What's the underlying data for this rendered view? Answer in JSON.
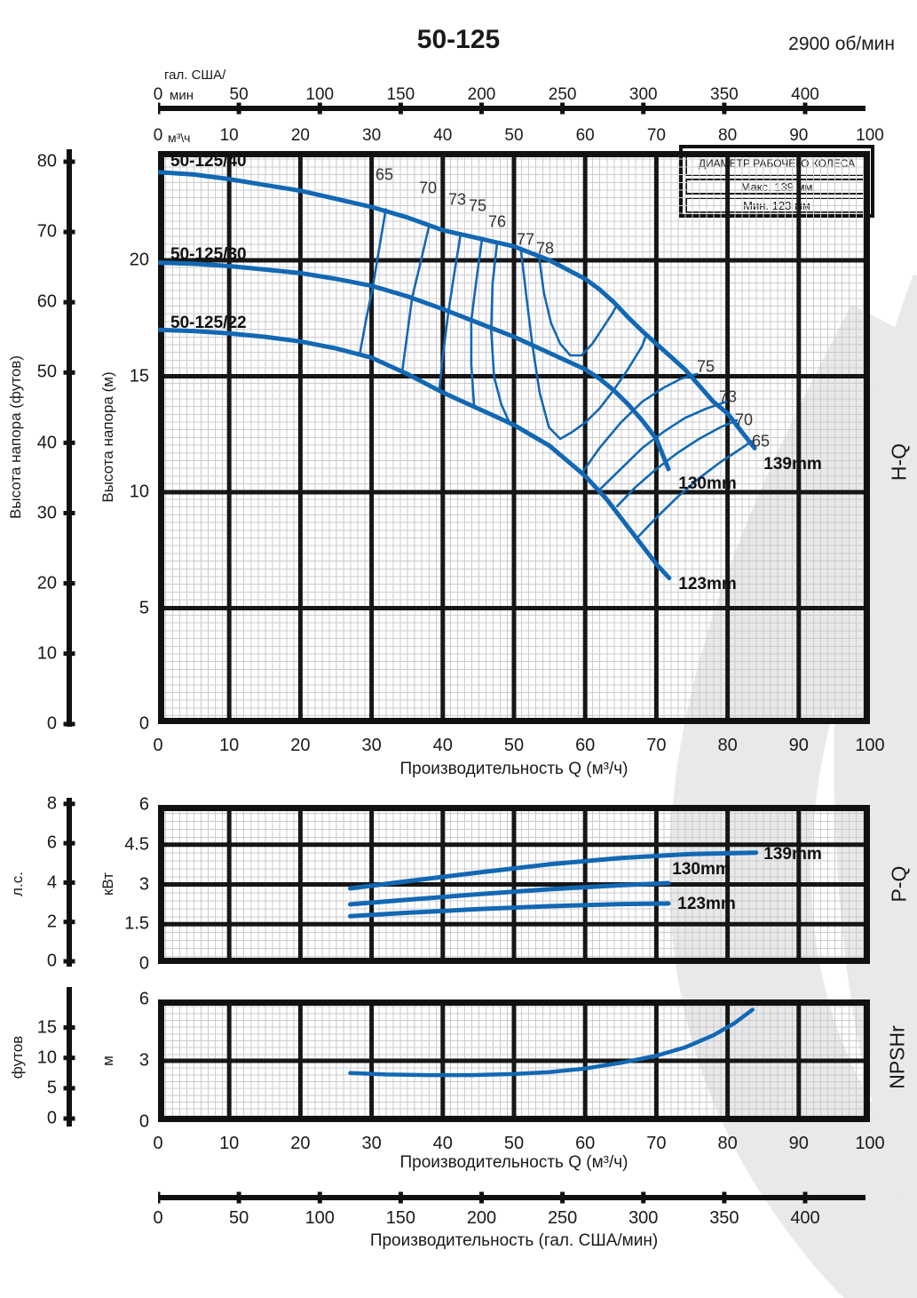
{
  "header": {
    "title": "50-125",
    "rpm": "2900 об/мин"
  },
  "legend": {
    "title": "ДИАМЕТР РАБОЧЕГО КОЛЕСА",
    "max_label": "Макс. 139 мм",
    "min_label": "Мин. 123 мм"
  },
  "axis_units": {
    "gal_line1": "гал. США/",
    "gal_line2": "мин",
    "m3h": "м³\\ч",
    "kw": "кВт",
    "hp": "л.с.",
    "m": "м",
    "feet": "футов",
    "head_ft": "Высота напора (футов)",
    "head_m": "Высота напора (м)"
  },
  "axis_titles": {
    "q_m3h": "Производительность Q (м³/ч)",
    "q_gal": "Производительность (гал. США/мин)"
  },
  "section_labels": {
    "hq": "H-Q",
    "pq": "P-Q",
    "npsh": "NPSHr"
  },
  "axis_ticks": {
    "gal": [
      "0",
      "50",
      "100",
      "150",
      "200",
      "250",
      "300",
      "350",
      "400"
    ],
    "m3h_top": [
      "0",
      "10",
      "20",
      "30",
      "40",
      "50",
      "60",
      "70",
      "80",
      "90",
      "100"
    ],
    "q_bottom": [
      "0",
      "10",
      "20",
      "30",
      "40",
      "50",
      "60",
      "70",
      "80",
      "90",
      "100"
    ],
    "head_m": [
      "0",
      "5",
      "10",
      "15",
      "20"
    ],
    "head_ft": [
      "0",
      "10",
      "20",
      "30",
      "40",
      "50",
      "60",
      "70",
      "80"
    ],
    "kw": [
      "0",
      "1.5",
      "3",
      "4.5",
      "6"
    ],
    "hp": [
      "0",
      "2",
      "4",
      "6",
      "8"
    ],
    "npsh_m": [
      "0",
      "3",
      "6"
    ],
    "npsh_ft": [
      "0",
      "5",
      "10",
      "15"
    ]
  },
  "curve_labels": {
    "family": [
      "50-125/40",
      "50-125/30",
      "50-125/22"
    ],
    "d139": "139mm",
    "d130": "130mm",
    "d123": "123mm"
  },
  "colors": {
    "curve_blue": "#1268b3",
    "grid_major": "#161616",
    "watermark": "#e9e9eb"
  },
  "chart_data": [
    {
      "type": "line",
      "title": "H-Q",
      "xlabel": "Производительность Q (м³/ч)",
      "ylabel": "Высота напора (м)",
      "xlim": [
        0,
        100
      ],
      "ylim": [
        0,
        24.7
      ],
      "x_ticks_major": [
        0,
        10,
        20,
        30,
        40,
        50,
        60,
        70,
        80,
        90,
        100
      ],
      "y_ticks_major": [
        0,
        5,
        10,
        15,
        20
      ],
      "series": [
        {
          "name": "50-125/40 (139mm)",
          "points": [
            [
              0,
              23.8
            ],
            [
              5,
              23.7
            ],
            [
              10,
              23.5
            ],
            [
              15,
              23.25
            ],
            [
              20,
              23.0
            ],
            [
              25,
              22.65
            ],
            [
              30,
              22.3
            ],
            [
              35,
              21.85
            ],
            [
              40,
              21.3
            ],
            [
              45,
              20.95
            ],
            [
              50,
              20.6
            ],
            [
              55,
              20.0
            ],
            [
              60,
              19.2
            ],
            [
              62,
              18.75
            ],
            [
              64,
              18.2
            ],
            [
              66,
              17.55
            ],
            [
              68,
              16.95
            ],
            [
              70,
              16.4
            ],
            [
              72,
              15.85
            ],
            [
              74,
              15.3
            ],
            [
              76,
              14.6
            ],
            [
              78,
              13.9
            ],
            [
              80,
              13.4
            ],
            [
              82,
              12.6
            ],
            [
              83.8,
              11.9
            ]
          ]
        },
        {
          "name": "50-125/30 (130mm)",
          "points": [
            [
              0,
              19.9
            ],
            [
              5,
              19.85
            ],
            [
              10,
              19.75
            ],
            [
              15,
              19.6
            ],
            [
              20,
              19.45
            ],
            [
              25,
              19.2
            ],
            [
              30,
              18.9
            ],
            [
              35,
              18.45
            ],
            [
              40,
              17.9
            ],
            [
              45,
              17.3
            ],
            [
              50,
              16.7
            ],
            [
              55,
              16.0
            ],
            [
              60,
              15.3
            ],
            [
              62,
              14.9
            ],
            [
              64,
              14.4
            ],
            [
              66,
              13.8
            ],
            [
              68,
              13.1
            ],
            [
              70,
              12.3
            ],
            [
              71.7,
              11.0
            ]
          ]
        },
        {
          "name": "50-125/22 (123mm)",
          "points": [
            [
              0,
              17.0
            ],
            [
              5,
              16.95
            ],
            [
              10,
              16.85
            ],
            [
              15,
              16.7
            ],
            [
              20,
              16.5
            ],
            [
              25,
              16.2
            ],
            [
              30,
              15.8
            ],
            [
              35,
              15.1
            ],
            [
              40,
              14.3
            ],
            [
              45,
              13.6
            ],
            [
              50,
              12.9
            ],
            [
              55,
              12.0
            ],
            [
              60,
              10.7
            ],
            [
              63,
              9.7
            ],
            [
              66,
              8.5
            ],
            [
              68,
              7.7
            ],
            [
              70,
              6.9
            ],
            [
              71.8,
              6.3
            ]
          ]
        }
      ],
      "efficiency_contours": [
        {
          "label": "65",
          "points": [
            [
              32,
              22.2
            ],
            [
              30.9,
              20.2
            ],
            [
              30.2,
              18.9
            ],
            [
              29.2,
              17.4
            ],
            [
              28.3,
              15.9
            ]
          ]
        },
        {
          "label": "70",
          "points": [
            [
              38,
              21.4
            ],
            [
              36.8,
              19.8
            ],
            [
              35.7,
              18.4
            ],
            [
              35,
              16.8
            ],
            [
              34.3,
              15.2
            ]
          ]
        },
        {
          "label": "73",
          "points": [
            [
              42.5,
              21.1
            ],
            [
              41.6,
              19.4
            ],
            [
              40.8,
              17.8
            ],
            [
              40.1,
              16.1
            ],
            [
              39.5,
              14.4
            ]
          ]
        },
        {
          "label": "75",
          "points": [
            [
              45.5,
              20.9
            ],
            [
              44.7,
              19.1
            ],
            [
              44,
              17.4
            ],
            [
              44,
              15.5
            ],
            [
              44.4,
              13.7
            ]
          ]
        },
        {
          "label": "76",
          "points": [
            [
              47.6,
              20.7
            ],
            [
              47,
              19.0
            ],
            [
              46.8,
              17.0
            ],
            [
              47.2,
              15.0
            ],
            [
              48.2,
              13.8
            ],
            [
              49.5,
              12.9
            ]
          ]
        },
        {
          "label": "77",
          "points": [
            [
              51,
              20.4
            ],
            [
              51.8,
              18.3
            ],
            [
              52.6,
              16.3
            ],
            [
              53.6,
              14.3
            ],
            [
              54.9,
              12.8
            ],
            [
              56.5,
              12.3
            ],
            [
              58.2,
              12.6
            ],
            [
              60,
              13.0
            ],
            [
              62,
              13.6
            ],
            [
              64,
              14.4
            ],
            [
              66,
              15.3
            ],
            [
              68,
              16.3
            ],
            [
              68.6,
              16.8
            ]
          ]
        },
        {
          "label": "78",
          "points": [
            [
              53.5,
              20.2
            ],
            [
              54.2,
              18.6
            ],
            [
              55.2,
              17.3
            ],
            [
              56.5,
              16.4
            ],
            [
              57.9,
              15.9
            ],
            [
              59.5,
              15.9
            ],
            [
              61,
              16.4
            ],
            [
              62.5,
              17.1
            ],
            [
              63.8,
              17.7
            ],
            [
              64.5,
              18.1
            ]
          ]
        },
        {
          "label": "75",
          "points": [
            [
              59.5,
              10.8
            ],
            [
              62,
              11.9
            ],
            [
              65,
              13.0
            ],
            [
              68,
              13.9
            ],
            [
              71,
              14.5
            ],
            [
              73.5,
              14.9
            ],
            [
              75.7,
              15.1
            ]
          ]
        },
        {
          "label": "73",
          "points": [
            [
              62,
              10.1
            ],
            [
              65,
              11.0
            ],
            [
              68,
              11.9
            ],
            [
              71,
              12.6
            ],
            [
              74,
              13.2
            ],
            [
              77,
              13.6
            ],
            [
              79.8,
              13.9
            ]
          ]
        },
        {
          "label": "70",
          "points": [
            [
              64.5,
              9.4
            ],
            [
              67,
              10.2
            ],
            [
              70,
              11.0
            ],
            [
              73,
              11.7
            ],
            [
              76,
              12.3
            ],
            [
              79,
              12.8
            ],
            [
              81.3,
              13.1
            ]
          ]
        },
        {
          "label": "65",
          "points": [
            [
              67.5,
              8.1
            ],
            [
              70,
              8.9
            ],
            [
              73,
              9.8
            ],
            [
              76,
              10.6
            ],
            [
              79,
              11.3
            ],
            [
              81.5,
              11.8
            ],
            [
              83.4,
              12.2
            ]
          ]
        }
      ]
    },
    {
      "type": "line",
      "title": "P-Q",
      "ylabel": "кВт",
      "xlim": [
        0,
        100
      ],
      "ylim": [
        0,
        6
      ],
      "y_ticks_major": [
        0,
        1.5,
        3,
        4.5,
        6
      ],
      "series": [
        {
          "name": "139mm",
          "points": [
            [
              27,
              2.85
            ],
            [
              35,
              3.12
            ],
            [
              45,
              3.45
            ],
            [
              55,
              3.76
            ],
            [
              65,
              4.0
            ],
            [
              75,
              4.15
            ],
            [
              84,
              4.2
            ]
          ]
        },
        {
          "name": "130mm",
          "points": [
            [
              27,
              2.25
            ],
            [
              35,
              2.42
            ],
            [
              45,
              2.63
            ],
            [
              55,
              2.82
            ],
            [
              65,
              2.97
            ],
            [
              71.7,
              3.05
            ]
          ]
        },
        {
          "name": "123mm",
          "points": [
            [
              27,
              1.8
            ],
            [
              35,
              1.93
            ],
            [
              45,
              2.07
            ],
            [
              55,
              2.18
            ],
            [
              65,
              2.26
            ],
            [
              71.7,
              2.28
            ]
          ]
        }
      ]
    },
    {
      "type": "line",
      "title": "NPSHr",
      "ylabel": "м",
      "xlim": [
        0,
        100
      ],
      "ylim": [
        0,
        6
      ],
      "y_ticks_major": [
        0,
        3,
        6
      ],
      "series": [
        {
          "name": "NPSHr",
          "points": [
            [
              27,
              2.4
            ],
            [
              32,
              2.33
            ],
            [
              38,
              2.3
            ],
            [
              44,
              2.3
            ],
            [
              50,
              2.35
            ],
            [
              55,
              2.45
            ],
            [
              60,
              2.62
            ],
            [
              65,
              2.9
            ],
            [
              70,
              3.25
            ],
            [
              74,
              3.65
            ],
            [
              78,
              4.25
            ],
            [
              81,
              4.85
            ],
            [
              83.5,
              5.5
            ]
          ]
        }
      ]
    }
  ]
}
